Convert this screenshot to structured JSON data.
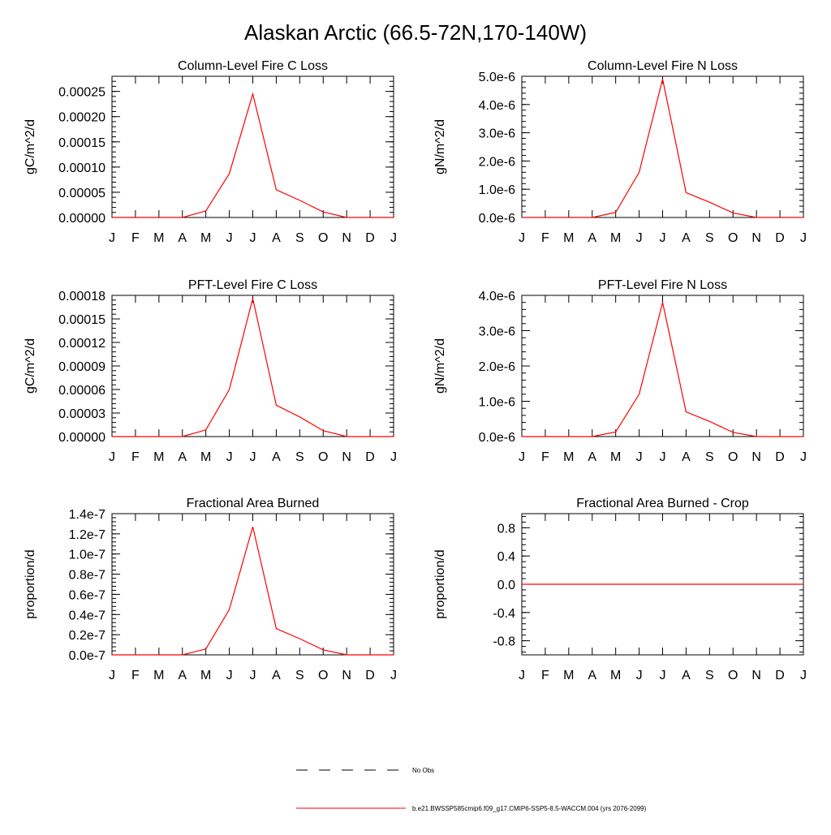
{
  "figure": {
    "title": "Alaskan Arctic (66.5-72N,170-140W)"
  },
  "chart_data": [
    {
      "type": "line",
      "title": "Column-Level Fire C Loss",
      "xlabel": "",
      "ylabel": "gC/m^2/d",
      "categories": [
        "J",
        "F",
        "M",
        "A",
        "M",
        "J",
        "J",
        "A",
        "S",
        "O",
        "N",
        "D",
        "J"
      ],
      "ylim": [
        0,
        0.00028
      ],
      "yticks": [
        0,
        5e-05,
        0.0001,
        0.00015,
        0.0002,
        0.00025
      ],
      "yticklabels": [
        "0.00000",
        "0.00005",
        "0.00010",
        "0.00015",
        "0.00020",
        "0.00025"
      ],
      "grid": false,
      "series": [
        {
          "color": "#ff0000",
          "values": [
            0,
            0,
            0,
            0,
            1.3e-05,
            8.7e-05,
            0.000245,
            5.5e-05,
            3.4e-05,
            1.1e-05,
            0,
            0,
            0
          ]
        }
      ]
    },
    {
      "type": "line",
      "title": "Column-Level Fire N Loss",
      "xlabel": "",
      "ylabel": "gN/m^2/d",
      "categories": [
        "J",
        "F",
        "M",
        "A",
        "M",
        "J",
        "J",
        "A",
        "S",
        "O",
        "N",
        "D",
        "J"
      ],
      "ylim": [
        0,
        5e-06
      ],
      "yticks": [
        0,
        1e-06,
        2e-06,
        3e-06,
        4e-06,
        5e-06
      ],
      "yticklabels": [
        "0.0e-6",
        "1.0e-6",
        "2.0e-6",
        "3.0e-6",
        "4.0e-6",
        "5.0e-6"
      ],
      "grid": false,
      "series": [
        {
          "color": "#ff0000",
          "values": [
            0,
            0,
            0,
            0,
            1.8e-07,
            1.6e-06,
            4.9e-06,
            8.8e-07,
            5.4e-07,
            1.6e-07,
            0,
            0,
            0
          ]
        }
      ]
    },
    {
      "type": "line",
      "title": "PFT-Level Fire C Loss",
      "xlabel": "",
      "ylabel": "gC/m^2/d",
      "categories": [
        "J",
        "F",
        "M",
        "A",
        "M",
        "J",
        "J",
        "A",
        "S",
        "O",
        "N",
        "D",
        "J"
      ],
      "ylim": [
        0,
        0.00018
      ],
      "yticks": [
        0,
        3e-05,
        6e-05,
        9e-05,
        0.00012,
        0.00015,
        0.00018
      ],
      "yticklabels": [
        "0.00000",
        "0.00003",
        "0.00006",
        "0.00009",
        "0.00012",
        "0.00015",
        "0.00018"
      ],
      "grid": false,
      "series": [
        {
          "color": "#ff0000",
          "values": [
            0,
            0,
            0,
            0,
            8.5e-06,
            6e-05,
            0.000176,
            4e-05,
            2.5e-05,
            7.5e-06,
            0,
            0,
            0
          ]
        }
      ]
    },
    {
      "type": "line",
      "title": "PFT-Level Fire N Loss",
      "xlabel": "",
      "ylabel": "gN/m^2/d",
      "categories": [
        "J",
        "F",
        "M",
        "A",
        "M",
        "J",
        "J",
        "A",
        "S",
        "O",
        "N",
        "D",
        "J"
      ],
      "ylim": [
        0,
        4e-06
      ],
      "yticks": [
        0,
        1e-06,
        2e-06,
        3e-06,
        4e-06
      ],
      "yticklabels": [
        "0.0e-6",
        "1.0e-6",
        "2.0e-6",
        "3.0e-6",
        "4.0e-6"
      ],
      "grid": false,
      "series": [
        {
          "color": "#ff0000",
          "values": [
            0,
            0,
            0,
            0,
            1.3e-07,
            1.2e-06,
            3.8e-06,
            7e-07,
            4.3e-07,
            1.2e-07,
            0,
            0,
            0
          ]
        }
      ]
    },
    {
      "type": "line",
      "title": "Fractional Area Burned",
      "xlabel": "",
      "ylabel": "proportion/d",
      "categories": [
        "J",
        "F",
        "M",
        "A",
        "M",
        "J",
        "J",
        "A",
        "S",
        "O",
        "N",
        "D",
        "J"
      ],
      "ylim": [
        0,
        1.4e-07
      ],
      "yticks": [
        0,
        2e-08,
        4e-08,
        6e-08,
        8e-08,
        1e-07,
        1.2e-07,
        1.4e-07
      ],
      "yticklabels": [
        "0.0e-7",
        "0.2e-7",
        "0.4e-7",
        "0.6e-7",
        "0.8e-7",
        "1.0e-7",
        "1.2e-7",
        "1.4e-7"
      ],
      "grid": false,
      "series": [
        {
          "color": "#ff0000",
          "values": [
            0,
            0,
            0,
            0,
            5.8e-09,
            4.5e-08,
            1.27e-07,
            2.6e-08,
            1.6e-08,
            5e-09,
            0,
            0,
            0
          ]
        }
      ]
    },
    {
      "type": "line",
      "title": "Fractional Area Burned - Crop",
      "xlabel": "",
      "ylabel": "proportion/d",
      "categories": [
        "J",
        "F",
        "M",
        "A",
        "M",
        "J",
        "J",
        "A",
        "S",
        "O",
        "N",
        "D",
        "J"
      ],
      "ylim": [
        -1,
        1
      ],
      "yticks": [
        -0.8,
        -0.4,
        0,
        0.4,
        0.8
      ],
      "yticklabels": [
        "-0.8",
        "-0.4",
        "0.0",
        "0.4",
        "0.8"
      ],
      "grid": false,
      "series": [
        {
          "color": "#ff0000",
          "values": [
            0,
            0,
            0,
            0,
            0,
            0,
            0,
            0,
            0,
            0,
            0,
            0,
            0
          ]
        }
      ]
    }
  ],
  "legend": {
    "placement": "bottom-center",
    "items": [
      {
        "label": "No Obs",
        "style": "dashed",
        "color": "#000000"
      },
      {
        "label": "b.e21.BWSSP585cmip6.f09_g17.CMIP6-SSP5-8.5-WACCM.004 (yrs 2076-2099)",
        "style": "solid",
        "color": "#ff0000"
      }
    ]
  }
}
